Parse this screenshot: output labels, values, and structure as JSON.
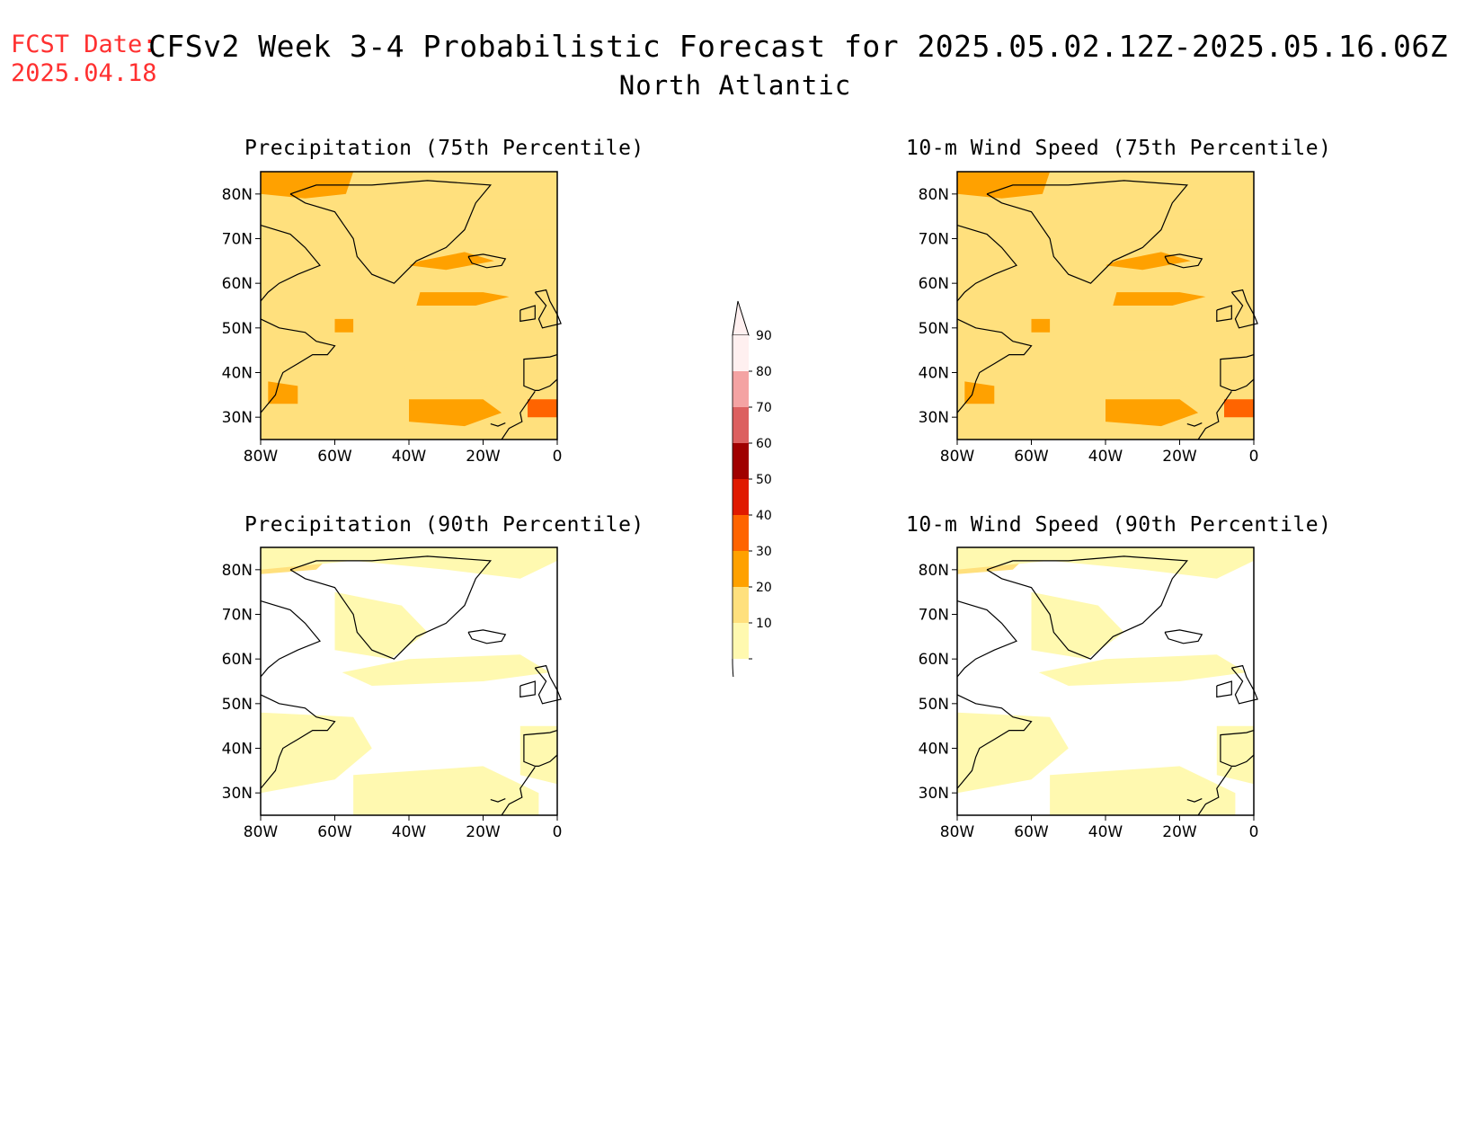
{
  "header": {
    "fcst_label": "FCST Date:",
    "fcst_date": "2025.04.18",
    "title": "CFSv2 Week 3-4 Probabilistic Forecast for 2025.05.02.12Z-2025.05.16.06Z",
    "region": "North Atlantic"
  },
  "axes": {
    "lat_ticks": [
      "80N",
      "70N",
      "60N",
      "50N",
      "40N",
      "30N"
    ],
    "lon_ticks": [
      "80W",
      "60W",
      "40W",
      "20W",
      "0"
    ]
  },
  "panels": [
    {
      "title": "Precipitation (75th Percentile)",
      "level": "high"
    },
    {
      "title": "10-m Wind Speed (75th Percentile)",
      "level": "high"
    },
    {
      "title": "Precipitation (90th Percentile)",
      "level": "low"
    },
    {
      "title": "10-m Wind Speed (90th Percentile)",
      "level": "low"
    }
  ],
  "colorbar": {
    "labels": [
      "90",
      "80",
      "70",
      "60",
      "50",
      "40",
      "30",
      "20",
      "10"
    ],
    "colors": [
      "#fff0f0",
      "#f4a3a3",
      "#dc6060",
      "#a00000",
      "#e01a00",
      "#ff6400",
      "#ffa100",
      "#ffe07d",
      "#fff9b0"
    ]
  },
  "colors": {
    "shade_10_20": "#fff9b0",
    "shade_20_30": "#ffe07d",
    "shade_30_40": "#ffa100",
    "shade_40_50": "#ff6400",
    "shade_50_60": "#e01a00",
    "title_red": "#ff3030"
  }
}
